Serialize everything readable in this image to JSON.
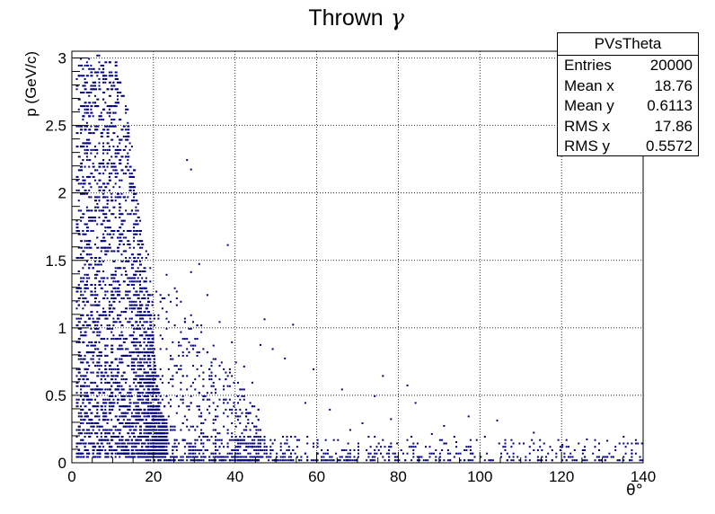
{
  "chart_data": {
    "type": "heatmap",
    "title": "Thrown",
    "title_symbol": "γ",
    "xlabel": "θ°",
    "ylabel": "p (GeV/c)",
    "xlim": [
      0,
      140
    ],
    "ylim": [
      0,
      3.05
    ],
    "xticks": [
      "0",
      "20",
      "40",
      "60",
      "80",
      "100",
      "120",
      "140"
    ],
    "yticks": [
      "0",
      "0.5",
      "1",
      "1.5",
      "2",
      "2.5",
      "3"
    ],
    "grid": true,
    "marker_color": "#000080",
    "stats": {
      "name": "PVsTheta",
      "rows": [
        {
          "label": "Entries",
          "value": "20000"
        },
        {
          "label": "Mean x",
          "value": "18.76"
        },
        {
          "label": "Mean y",
          "value": "0.6113"
        },
        {
          "label": "RMS x",
          "value": "17.86"
        },
        {
          "label": "RMS y",
          "value": "0.5572"
        }
      ]
    },
    "sparse_points": [
      [
        28,
        2.25
      ],
      [
        29,
        2.18
      ],
      [
        38,
        1.62
      ],
      [
        29,
        1.42
      ],
      [
        47,
        1.07
      ],
      [
        54,
        1.03
      ],
      [
        39,
        0.9
      ],
      [
        40,
        0.75
      ],
      [
        46,
        0.88
      ],
      [
        49,
        0.85
      ],
      [
        52,
        0.78
      ],
      [
        59,
        0.7
      ],
      [
        76,
        0.65
      ],
      [
        82,
        0.58
      ],
      [
        84,
        0.45
      ],
      [
        74,
        0.5
      ],
      [
        78,
        0.33
      ],
      [
        91,
        0.28
      ],
      [
        97,
        0.35
      ],
      [
        104,
        0.32
      ],
      [
        113,
        0.23
      ],
      [
        126,
        0.18
      ],
      [
        131,
        0.17
      ],
      [
        135,
        0.2
      ],
      [
        101,
        0.2
      ],
      [
        108,
        0.15
      ],
      [
        68,
        0.25
      ],
      [
        88,
        0.22
      ],
      [
        120,
        0.14
      ],
      [
        138,
        0.15
      ],
      [
        94,
        0.16
      ],
      [
        71,
        0.3
      ],
      [
        63,
        0.4
      ],
      [
        57,
        0.45
      ],
      [
        66,
        0.55
      ],
      [
        44,
        0.6
      ],
      [
        36,
        1.05
      ],
      [
        33,
        1.25
      ],
      [
        31,
        1.48
      ],
      [
        42,
        0.72
      ]
    ]
  }
}
